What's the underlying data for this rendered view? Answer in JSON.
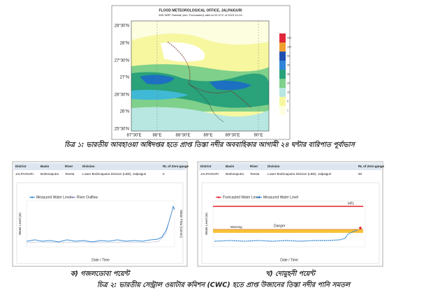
{
  "figure1": {
    "title": "FLOOD METEOROLOGICAL OFFICE, JALPAIGURI",
    "subtitle": "IMD WRF Rainfall (mm; Forecasted) valid at 03 UTC of 2023-10-04",
    "lat_labels": [
      "28°30'N",
      "28°N",
      "27°30'N",
      "27°N",
      "26°30'N",
      "26°N",
      "25°30'N"
    ],
    "lon_labels": [
      "87°30'E",
      "88°E",
      "88°30'E",
      "89°E",
      "89°30'E",
      "90°E"
    ],
    "colorbar_labels": [
      "200",
      "100",
      "50",
      "40",
      "30",
      "20",
      "10",
      "5",
      "1"
    ]
  },
  "caption1": "চিত্র ১: ভারতীয় আবহাওয়া অধিদপ্তর হতে প্রাপ্ত তিস্তা নদীর অববাহিকার আগামী ২৪ ঘন্টার বারিপাত পূর্বাভাস",
  "panels": [
    {
      "headers": [
        "District",
        "Basin",
        "River",
        "Division",
        "RL of Zero-gauge"
      ],
      "row": [
        "JALPAIGURI",
        "Brahmaputra",
        "Teesta",
        "Lower Brahmaputra Division (LBD), Jalpaiguri",
        "0"
      ],
      "legend": [
        "Measured Water Level",
        "River Outflow"
      ],
      "y_label": "Water Level (m)",
      "y2_label": "Water Flow (cumec)",
      "x_label": "Date / Time",
      "caption": "ক) গজলডোবা পয়েন্ট"
    },
    {
      "headers": [
        "District",
        "Basin",
        "River",
        "Division",
        "RL of Zero-gauge"
      ],
      "row": [
        "JALPAIGURI",
        "Brahmaputra",
        "Teesta",
        "Lower Brahmaputra Division (LBD), Jalpaiguri",
        "60"
      ],
      "legend": [
        "Forecasted Water Level",
        "Measured Water Level"
      ],
      "annotations": [
        "HFL",
        "Danger",
        "Warning"
      ],
      "y_label": "Water Level (m)",
      "x_label": "Date / Time",
      "caption": "খ) দোমুহনী পয়েন্ট"
    }
  ],
  "caption2": "চিত্র ২: ভারতীয় সেন্ট্রাল ওয়াটার কমিশন (CWC) হতে প্রাপ্ত উজানের তিস্তা নদীর পানি সমতল"
}
